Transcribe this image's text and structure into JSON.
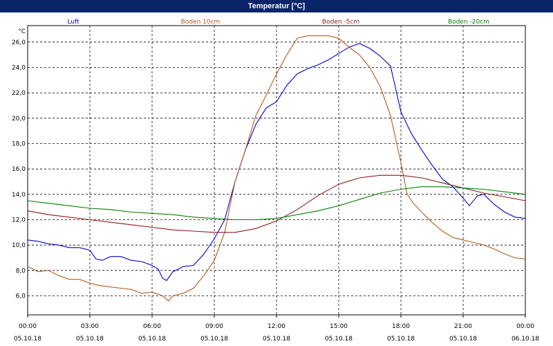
{
  "window": {
    "title": "Temperatur [°C]"
  },
  "chart_data": {
    "type": "line",
    "ylabel": "°C",
    "xlabel": "",
    "ylim": [
      4.5,
      27.3
    ],
    "yticks": [
      "6,0",
      "8,0",
      "10,0",
      "12,0",
      "14,0",
      "16,0",
      "18,0",
      "20,0",
      "22,0",
      "24,0",
      "26,0"
    ],
    "ytick_values": [
      6,
      8,
      10,
      12,
      14,
      16,
      18,
      20,
      22,
      24,
      26
    ],
    "xlim": [
      0,
      24
    ],
    "xtick_hours": [
      0,
      3,
      6,
      9,
      12,
      15,
      18,
      21,
      24
    ],
    "xtick_times": [
      "00:00",
      "03:00",
      "06:00",
      "09:00",
      "12:00",
      "15:00",
      "18:00",
      "21:00",
      "00:00"
    ],
    "xtick_dates": [
      "05.10.18",
      "05.10.18",
      "05.10.18",
      "05.10.18",
      "05.10.18",
      "05.10.18",
      "05.10.18",
      "05.10.18",
      "06.10.18"
    ],
    "grid": true,
    "legend_position": "top",
    "series": [
      {
        "name": "Luft",
        "color": "#0000cc",
        "points": [
          [
            0,
            10.4
          ],
          [
            0.5,
            10.3
          ],
          [
            1,
            10.1
          ],
          [
            1.5,
            10.0
          ],
          [
            2,
            9.8
          ],
          [
            2.5,
            9.8
          ],
          [
            3,
            9.6
          ],
          [
            3.3,
            8.9
          ],
          [
            3.6,
            8.8
          ],
          [
            4,
            9.1
          ],
          [
            4.5,
            9.1
          ],
          [
            5,
            8.8
          ],
          [
            5.5,
            8.7
          ],
          [
            6,
            8.4
          ],
          [
            6.3,
            8.1
          ],
          [
            6.5,
            7.4
          ],
          [
            6.7,
            7.2
          ],
          [
            7,
            7.9
          ],
          [
            7.5,
            8.3
          ],
          [
            8,
            8.4
          ],
          [
            8.5,
            9.3
          ],
          [
            9,
            10.5
          ],
          [
            9.5,
            12.0
          ],
          [
            10,
            15.0
          ],
          [
            10.5,
            17.5
          ],
          [
            11,
            19.5
          ],
          [
            11.5,
            20.8
          ],
          [
            12,
            21.3
          ],
          [
            12.5,
            22.6
          ],
          [
            13,
            23.5
          ],
          [
            13.5,
            23.9
          ],
          [
            14,
            24.2
          ],
          [
            14.5,
            24.6
          ],
          [
            15,
            25.1
          ],
          [
            15.5,
            25.6
          ],
          [
            16,
            25.9
          ],
          [
            16.5,
            25.5
          ],
          [
            17,
            24.9
          ],
          [
            17.5,
            24.1
          ],
          [
            18,
            20.5
          ],
          [
            18.5,
            18.8
          ],
          [
            19,
            17.5
          ],
          [
            19.5,
            16.3
          ],
          [
            20,
            15.2
          ],
          [
            20.5,
            14.6
          ],
          [
            21,
            13.7
          ],
          [
            21.3,
            13.1
          ],
          [
            21.7,
            13.9
          ],
          [
            22,
            14.0
          ],
          [
            22.5,
            13.2
          ],
          [
            23,
            12.6
          ],
          [
            23.5,
            12.2
          ],
          [
            24,
            12.1
          ]
        ]
      },
      {
        "name": "Boden 10cm",
        "color": "#b45a1e",
        "points": [
          [
            0,
            8.3
          ],
          [
            0.5,
            7.9
          ],
          [
            1,
            8.0
          ],
          [
            1.5,
            7.6
          ],
          [
            2,
            7.3
          ],
          [
            2.5,
            7.3
          ],
          [
            3,
            7.0
          ],
          [
            3.5,
            6.8
          ],
          [
            4,
            6.7
          ],
          [
            4.5,
            6.6
          ],
          [
            5,
            6.5
          ],
          [
            5.5,
            6.2
          ],
          [
            6,
            6.3
          ],
          [
            6.5,
            6.0
          ],
          [
            6.8,
            5.6
          ],
          [
            7,
            6.0
          ],
          [
            7.5,
            6.2
          ],
          [
            8,
            6.6
          ],
          [
            8.5,
            7.6
          ],
          [
            9,
            8.8
          ],
          [
            9.5,
            11.0
          ],
          [
            10,
            15.0
          ],
          [
            10.5,
            17.5
          ],
          [
            11,
            20.2
          ],
          [
            11.5,
            21.8
          ],
          [
            12,
            23.5
          ],
          [
            12.5,
            25.0
          ],
          [
            13,
            26.3
          ],
          [
            13.5,
            26.5
          ],
          [
            14,
            26.5
          ],
          [
            14.5,
            26.5
          ],
          [
            15,
            26.3
          ],
          [
            15.5,
            25.6
          ],
          [
            16,
            25.0
          ],
          [
            16.5,
            24.0
          ],
          [
            17,
            22.5
          ],
          [
            17.5,
            20.2
          ],
          [
            18,
            16.5
          ],
          [
            18.3,
            14.0
          ],
          [
            18.6,
            13.3
          ],
          [
            19,
            12.6
          ],
          [
            19.5,
            11.8
          ],
          [
            20,
            11.1
          ],
          [
            20.5,
            10.6
          ],
          [
            21,
            10.4
          ],
          [
            21.5,
            10.2
          ],
          [
            22,
            10.0
          ],
          [
            22.5,
            9.7
          ],
          [
            23,
            9.3
          ],
          [
            23.5,
            9.0
          ],
          [
            24,
            8.9
          ]
        ]
      },
      {
        "name": "Boden -5cm",
        "color": "#8b1a1a",
        "points": [
          [
            0,
            12.7
          ],
          [
            1,
            12.4
          ],
          [
            2,
            12.2
          ],
          [
            3,
            12.0
          ],
          [
            4,
            11.8
          ],
          [
            5,
            11.6
          ],
          [
            6,
            11.4
          ],
          [
            7,
            11.2
          ],
          [
            8,
            11.1
          ],
          [
            9,
            11.0
          ],
          [
            10,
            11.0
          ],
          [
            11,
            11.3
          ],
          [
            12,
            11.9
          ],
          [
            13,
            12.8
          ],
          [
            14,
            13.9
          ],
          [
            15,
            14.8
          ],
          [
            16,
            15.3
          ],
          [
            17,
            15.5
          ],
          [
            18,
            15.5
          ],
          [
            19,
            15.3
          ],
          [
            20,
            14.9
          ],
          [
            21,
            14.5
          ],
          [
            22,
            14.1
          ],
          [
            23,
            13.8
          ],
          [
            24,
            13.5
          ]
        ]
      },
      {
        "name": "Boden -20cm",
        "color": "#008000",
        "points": [
          [
            0,
            13.5
          ],
          [
            1,
            13.3
          ],
          [
            2,
            13.1
          ],
          [
            3,
            12.9
          ],
          [
            4,
            12.8
          ],
          [
            5,
            12.6
          ],
          [
            6,
            12.5
          ],
          [
            7,
            12.4
          ],
          [
            8,
            12.2
          ],
          [
            9,
            12.1
          ],
          [
            10,
            12.0
          ],
          [
            11,
            12.0
          ],
          [
            12,
            12.1
          ],
          [
            13,
            12.4
          ],
          [
            14,
            12.7
          ],
          [
            15,
            13.1
          ],
          [
            16,
            13.6
          ],
          [
            17,
            14.1
          ],
          [
            18,
            14.4
          ],
          [
            19,
            14.6
          ],
          [
            20,
            14.6
          ],
          [
            21,
            14.5
          ],
          [
            22,
            14.4
          ],
          [
            23,
            14.2
          ],
          [
            24,
            14.0
          ]
        ]
      }
    ]
  }
}
